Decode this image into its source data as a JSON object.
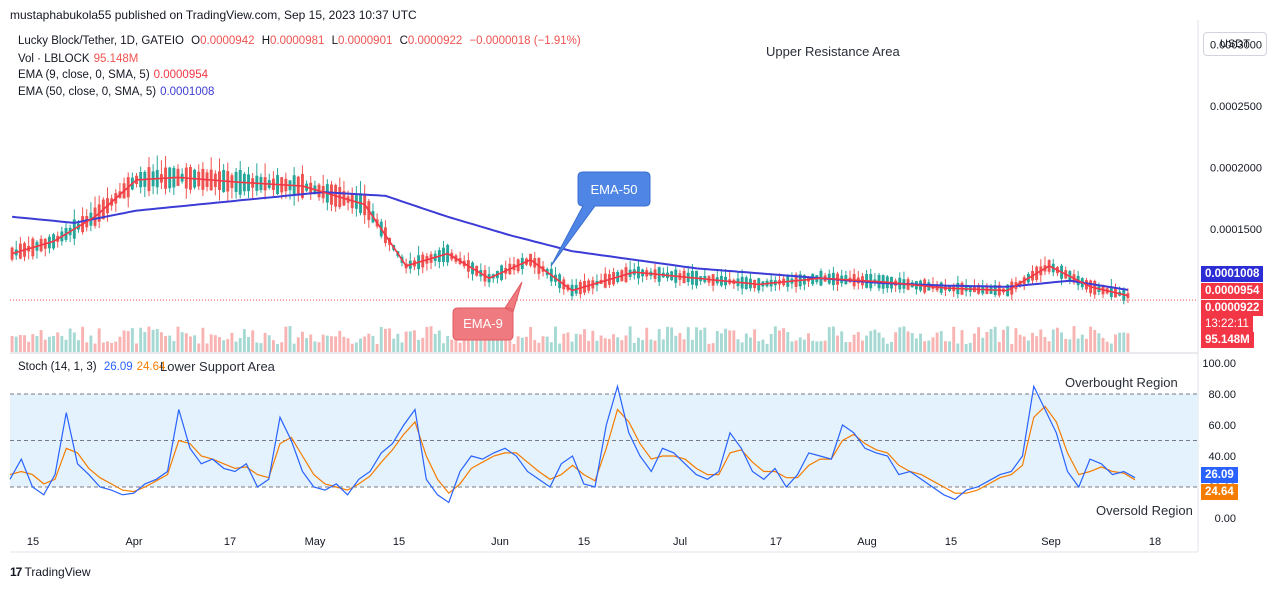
{
  "header": {
    "published": "mustaphabukola55 published on TradingView.com, Sep 15, 2023 10:37 UTC"
  },
  "legend": {
    "symbol": "Lucky Block/Tether, 1D, GATEIO",
    "o_label": "O",
    "o": "0.0000942",
    "h_label": "H",
    "h": "0.0000981",
    "l_label": "L",
    "l": "0.0000901",
    "c_label": "C",
    "c": "0.0000922",
    "change": "−0.0000018 (−1.91%)",
    "vol_label": "Vol · LBLOCK",
    "vol": "95.148M",
    "ema9_label": "EMA (9, close, 0, SMA, 5)",
    "ema9": "0.0000954",
    "ema50_label": "EMA (50, close, 0, SMA, 5)",
    "ema50": "0.0001008",
    "stoch_label": "Stoch (14, 1, 3)",
    "stoch_k": "26.09",
    "stoch_d": "24.64"
  },
  "annotations": {
    "upper": "Upper Resistance Area",
    "lower": "Lower Support Area",
    "ema50": "EMA-50",
    "ema9": "EMA-9",
    "overbought": "Overbought Region",
    "oversold": "Oversold Region"
  },
  "currency": "USDT",
  "price_tags": {
    "ema50": "0.0001008",
    "ema9": "0.0000954",
    "close": "0.0000922",
    "countdown": "13:22:11",
    "volume": "95.148M"
  },
  "stoch_tags": {
    "k": "26.09",
    "d": "24.64"
  },
  "footer": {
    "brand": "TradingView"
  },
  "colors": {
    "up": "#26a69a",
    "down": "#ef5350",
    "ema9": "#f23645",
    "ema50": "#3c3cd6",
    "k": "#2962ff",
    "d": "#f57c00",
    "band": "#e3f2fd"
  },
  "chart_data": [
    {
      "type": "candlestick",
      "title": "Lucky Block/Tether, 1D, GATEIO",
      "ylim": [
        5e-05,
        0.00032
      ],
      "y_ticks": [
        "0.0003000",
        "0.0002500",
        "0.0002000",
        "0.0001500",
        "0.0001000"
      ],
      "x_ticks": [
        "15",
        "Apr",
        "17",
        "May",
        "15",
        "Jun",
        "15",
        "Jul",
        "17",
        "Aug",
        "15",
        "Sep",
        "18"
      ],
      "series": [
        {
          "name": "EMA (9, close, 0, SMA, 5)",
          "last": 9.54e-05
        },
        {
          "name": "EMA (50, close, 0, SMA, 5)",
          "last": 0.0001008
        }
      ],
      "ema50_path": [
        [
          0,
          0.00016
        ],
        [
          15,
          0.000155
        ],
        [
          30,
          0.000165
        ],
        [
          45,
          0.00017
        ],
        [
          60,
          0.000175
        ],
        [
          75,
          0.00018
        ],
        [
          90,
          0.000177
        ],
        [
          105,
          0.00016
        ],
        [
          120,
          0.000145
        ],
        [
          135,
          0.000132
        ],
        [
          150,
          0.000125
        ],
        [
          165,
          0.000118
        ],
        [
          180,
          0.000114
        ],
        [
          195,
          0.00011
        ],
        [
          210,
          0.000106
        ],
        [
          225,
          0.000104
        ],
        [
          240,
          0.000103
        ],
        [
          255,
          0.000108
        ],
        [
          270,
          0.0001
        ]
      ],
      "ema9_path": [
        [
          0,
          0.00013
        ],
        [
          10,
          0.00014
        ],
        [
          20,
          0.00016
        ],
        [
          30,
          0.00019
        ],
        [
          40,
          0.000192
        ],
        [
          55,
          0.000188
        ],
        [
          70,
          0.000185
        ],
        [
          85,
          0.00017
        ],
        [
          95,
          0.00012
        ],
        [
          105,
          0.00013
        ],
        [
          115,
          0.00011
        ],
        [
          125,
          0.000125
        ],
        [
          135,
          0.0001
        ],
        [
          150,
          0.000115
        ],
        [
          165,
          0.00011
        ],
        [
          180,
          0.000105
        ],
        [
          195,
          0.00011
        ],
        [
          210,
          0.000107
        ],
        [
          225,
          0.000102
        ],
        [
          240,
          0.0001
        ],
        [
          250,
          0.00012
        ],
        [
          260,
          0.000103
        ],
        [
          270,
          9.5e-05
        ]
      ],
      "candle_count": 270,
      "last_close": 9.22e-05,
      "last_volume": "95.148M"
    },
    {
      "type": "line",
      "title": "Stoch (14, 1, 3)",
      "ylim": [
        0,
        100
      ],
      "y_ticks": [
        "100.00",
        "80.00",
        "60.00",
        "40.00",
        "20.00",
        "0.00"
      ],
      "levels": [
        80,
        50,
        20
      ],
      "series": [
        {
          "name": "%K",
          "last": 26.09,
          "values": [
            25,
            38,
            20,
            15,
            28,
            68,
            35,
            28,
            20,
            18,
            15,
            16,
            22,
            25,
            30,
            70,
            45,
            35,
            38,
            32,
            30,
            35,
            20,
            25,
            65,
            50,
            30,
            20,
            18,
            22,
            15,
            25,
            30,
            42,
            48,
            60,
            70,
            25,
            15,
            10,
            30,
            40,
            38,
            42,
            45,
            40,
            30,
            25,
            20,
            35,
            40,
            22,
            20,
            60,
            85,
            55,
            40,
            30,
            45,
            42,
            35,
            28,
            25,
            30,
            55,
            45,
            30,
            25,
            32,
            20,
            28,
            42,
            40,
            38,
            60,
            55,
            45,
            42,
            40,
            28,
            30,
            25,
            20,
            15,
            12,
            18,
            20,
            24,
            28,
            30,
            40,
            85,
            70,
            55,
            30,
            20,
            38,
            35,
            28,
            30,
            26
          ]
        },
        {
          "name": "%D",
          "last": 24.64,
          "values": [
            28,
            30,
            28,
            22,
            25,
            45,
            42,
            32,
            26,
            22,
            18,
            17,
            20,
            24,
            28,
            50,
            48,
            40,
            38,
            35,
            32,
            33,
            28,
            26,
            48,
            52,
            40,
            28,
            22,
            20,
            18,
            22,
            27,
            36,
            44,
            54,
            62,
            40,
            25,
            16,
            22,
            32,
            36,
            40,
            42,
            42,
            36,
            30,
            25,
            28,
            34,
            28,
            24,
            45,
            70,
            62,
            48,
            38,
            40,
            40,
            38,
            32,
            28,
            28,
            42,
            44,
            36,
            30,
            30,
            26,
            26,
            34,
            38,
            38,
            50,
            54,
            48,
            44,
            42,
            34,
            30,
            28,
            24,
            20,
            16,
            16,
            18,
            22,
            26,
            28,
            34,
            65,
            72,
            62,
            42,
            28,
            30,
            33,
            30,
            29,
            24.64
          ]
        }
      ]
    }
  ]
}
